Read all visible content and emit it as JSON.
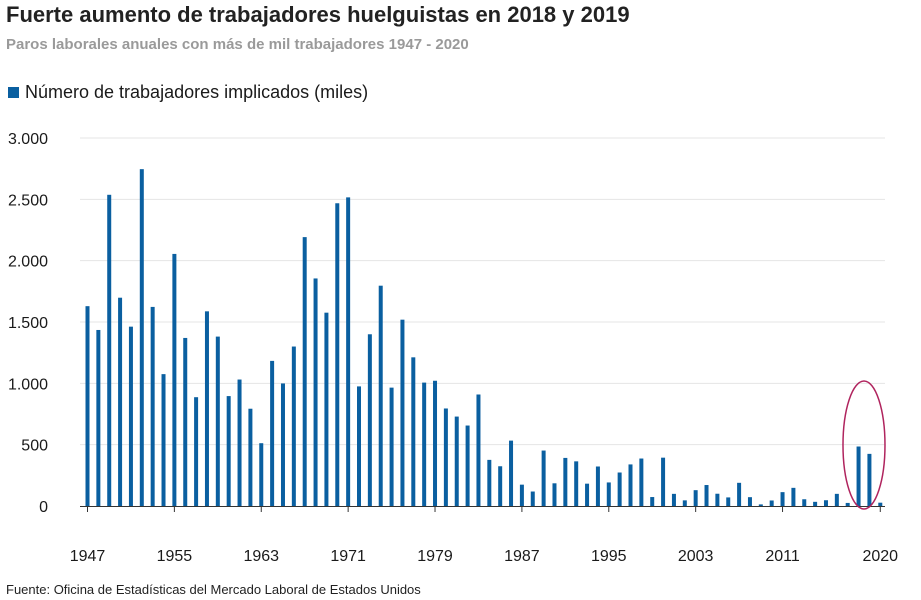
{
  "colors": {
    "bar": "#0a5fa0",
    "grid": "#e4e4e4",
    "axis": "#333333",
    "highlight": "#b0245e"
  },
  "chart_data": {
    "type": "bar",
    "title": "Fuerte aumento de trabajadores huelguistas en 2018 y 2019",
    "subtitle": "Paros laborales anuales con más de mil trabajadores 1947 - 2020",
    "legend": "Número de trabajadores implicados (miles)",
    "source": "Fuente: Oficina de Estadísticas del Mercado Laboral de Estados Unidos",
    "xlabel": "",
    "ylabel": "",
    "ylim": [
      0,
      3000
    ],
    "yticks": [
      {
        "value": 0,
        "label": "0"
      },
      {
        "value": 500,
        "label": "500"
      },
      {
        "value": 1000,
        "label": "1.000"
      },
      {
        "value": 1500,
        "label": "1.500"
      },
      {
        "value": 2000,
        "label": "2.000"
      },
      {
        "value": 2500,
        "label": "2.500"
      },
      {
        "value": 3000,
        "label": "3.000"
      }
    ],
    "xticks": [
      "1947",
      "1955",
      "1963",
      "1971",
      "1979",
      "1987",
      "1995",
      "2003",
      "2011",
      "2020"
    ],
    "highlight_years": [
      2018,
      2019
    ],
    "categories": [
      1947,
      1948,
      1949,
      1950,
      1951,
      1952,
      1953,
      1954,
      1955,
      1956,
      1957,
      1958,
      1959,
      1960,
      1961,
      1962,
      1963,
      1964,
      1965,
      1966,
      1967,
      1968,
      1969,
      1970,
      1971,
      1972,
      1973,
      1974,
      1975,
      1976,
      1977,
      1978,
      1979,
      1980,
      1981,
      1982,
      1983,
      1984,
      1985,
      1986,
      1987,
      1988,
      1989,
      1990,
      1991,
      1992,
      1993,
      1994,
      1995,
      1996,
      1997,
      1998,
      1999,
      2000,
      2001,
      2002,
      2003,
      2004,
      2005,
      2006,
      2007,
      2008,
      2009,
      2010,
      2011,
      2012,
      2013,
      2014,
      2015,
      2016,
      2017,
      2018,
      2019,
      2020
    ],
    "values": [
      1629,
      1435,
      2537,
      1698,
      1462,
      2746,
      1623,
      1075,
      2055,
      1370,
      887,
      1587,
      1381,
      896,
      1031,
      793,
      512,
      1183,
      999,
      1300,
      2192,
      1855,
      1576,
      2468,
      2516,
      975,
      1400,
      1796,
      965,
      1519,
      1212,
      1006,
      1021,
      795,
      729,
      656,
      909,
      376,
      324,
      533,
      174,
      118,
      452,
      185,
      392,
      364,
      182,
      322,
      192,
      273,
      339,
      387,
      73,
      394,
      99,
      46,
      129,
      171,
      100,
      70,
      189,
      72,
      13,
      45,
      113,
      148,
      55,
      34,
      47,
      99,
      25,
      485,
      425,
      27
    ]
  }
}
